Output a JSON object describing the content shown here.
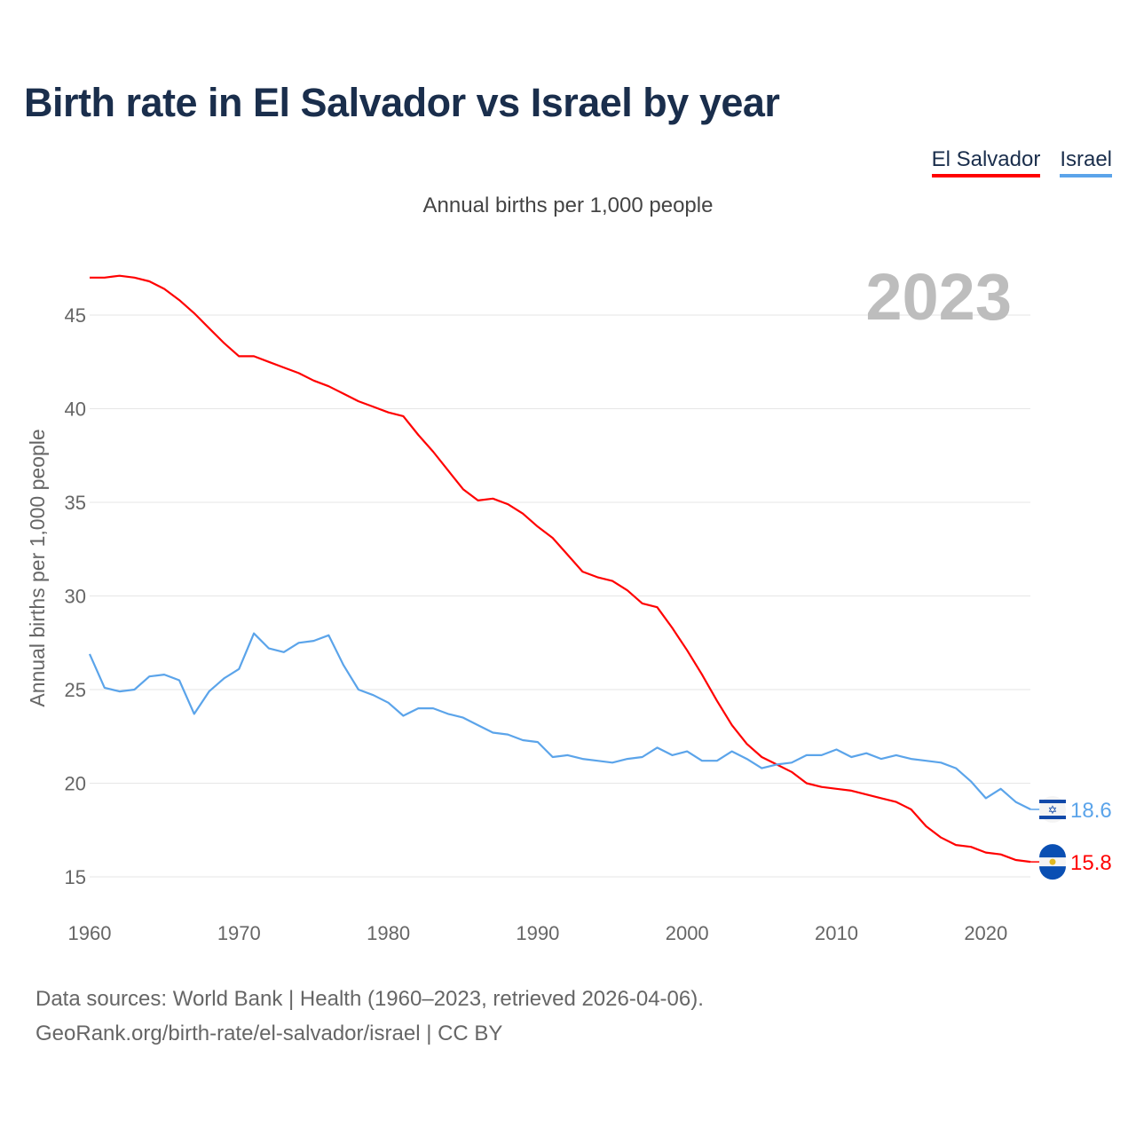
{
  "title": "Birth rate in El Salvador vs Israel by year",
  "subtitle": "Annual births per 1,000 people",
  "year_watermark": "2023",
  "footer": {
    "line1": "Data sources: World Bank | Health (1960–2023, retrieved 2026-04-06).",
    "line2": "GeoRank.org/birth-rate/el-salvador/israel | CC BY"
  },
  "chart_data": {
    "type": "line",
    "title": "Birth rate in El Salvador vs Israel by year",
    "xlabel": "",
    "ylabel": "Annual births per 1,000 people",
    "xlim": [
      1960,
      2023
    ],
    "ylim": [
      15,
      47
    ],
    "x_ticks": [
      1960,
      1970,
      1980,
      1990,
      2000,
      2010,
      2020
    ],
    "y_ticks": [
      15,
      20,
      25,
      30,
      35,
      40,
      45
    ],
    "grid": true,
    "legend_placement": "top-right",
    "x_start": 1960,
    "series": [
      {
        "name": "El Salvador",
        "color": "#ff0000",
        "end_label": "15.8",
        "flag": "el-salvador-flag",
        "values": [
          47.0,
          47.0,
          47.1,
          47.0,
          46.8,
          46.4,
          45.8,
          45.1,
          44.3,
          43.5,
          42.8,
          42.8,
          42.5,
          42.2,
          41.9,
          41.5,
          41.2,
          40.8,
          40.4,
          40.1,
          39.8,
          39.6,
          38.6,
          37.7,
          36.7,
          35.7,
          35.1,
          35.2,
          34.9,
          34.4,
          33.7,
          33.1,
          32.2,
          31.3,
          31.0,
          30.8,
          30.3,
          29.6,
          29.4,
          28.3,
          27.1,
          25.8,
          24.4,
          23.1,
          22.1,
          21.4,
          21.0,
          20.6,
          20.0,
          19.8,
          19.7,
          19.6,
          19.4,
          19.2,
          19.0,
          18.6,
          17.7,
          17.1,
          16.7,
          16.6,
          16.3,
          16.2,
          15.9,
          15.8
        ]
      },
      {
        "name": "Israel",
        "color": "#5ba4ea",
        "end_label": "18.6",
        "flag": "israel-flag",
        "values": [
          26.9,
          25.1,
          24.9,
          25.0,
          25.7,
          25.8,
          25.5,
          23.7,
          24.9,
          25.6,
          26.1,
          28.0,
          27.2,
          27.0,
          27.5,
          27.6,
          27.9,
          26.3,
          25.0,
          24.7,
          24.3,
          23.6,
          24.0,
          24.0,
          23.7,
          23.5,
          23.1,
          22.7,
          22.6,
          22.3,
          22.2,
          21.4,
          21.5,
          21.3,
          21.2,
          21.1,
          21.3,
          21.4,
          21.9,
          21.5,
          21.7,
          21.2,
          21.2,
          21.7,
          21.3,
          20.8,
          21.0,
          21.1,
          21.5,
          21.5,
          21.8,
          21.4,
          21.6,
          21.3,
          21.5,
          21.3,
          21.2,
          21.1,
          20.8,
          20.1,
          19.2,
          19.7,
          19.0,
          18.6
        ]
      }
    ]
  }
}
